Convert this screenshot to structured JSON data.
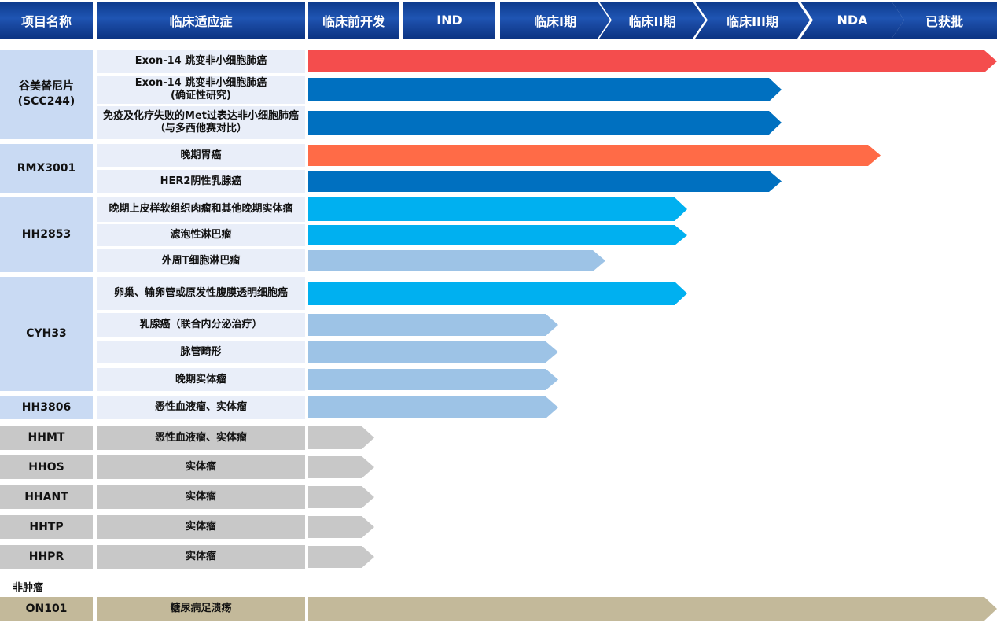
{
  "header": {
    "project_col": "项目名称",
    "indication_col": "临床适应症",
    "stages": [
      "临床前开发",
      "IND",
      "临床I期",
      "临床II期",
      "临床III期",
      "NDA",
      "已获批"
    ]
  },
  "colors": {
    "approved": "#F44D4D",
    "nda": "#FF6B47",
    "phase3": "#0070C0",
    "phase2": "#00B0F0",
    "early": "#9DC3E6",
    "preclinical": "#C8C8C8",
    "non_oncology": "#C3B99A",
    "cell_light": "#E9EEF9",
    "name_blue": "#C9DAF3"
  },
  "groups": [
    {
      "name": "谷美替尼片\n(SCC244)",
      "theme": "blue",
      "rows": [
        {
          "indication": "Exon-14 跳变非小细胞肺癌",
          "stage": "已获批",
          "color": "approved"
        },
        {
          "indication": "Exon-14 跳变非小细胞肺癌\n(确证性研究)",
          "stage": "临床III期",
          "color": "phase3"
        },
        {
          "indication": "免疫及化疗失败的Met过表达非小细胞肺癌（与多西他赛对比）",
          "stage": "临床III期",
          "color": "phase3"
        }
      ]
    },
    {
      "name": "RMX3001",
      "theme": "blue",
      "rows": [
        {
          "indication": "晚期胃癌",
          "stage": "NDA",
          "color": "nda"
        },
        {
          "indication": "HER2阴性乳腺癌",
          "stage": "临床III期",
          "color": "phase3"
        }
      ]
    },
    {
      "name": "HH2853",
      "theme": "blue",
      "rows": [
        {
          "indication": "晚期上皮样软组织肉瘤和其他晚期实体瘤",
          "stage": "临床II期",
          "color": "phase2"
        },
        {
          "indication": "滤泡性淋巴瘤",
          "stage": "临床II期",
          "color": "phase2"
        },
        {
          "indication": "外周T细胞淋巴瘤",
          "stage": "临床I期",
          "color": "early"
        }
      ]
    },
    {
      "name": "CYH33",
      "theme": "blue",
      "rows": [
        {
          "indication": "卵巢、输卵管或原发性腹膜透明细胞癌",
          "stage": "临床II期",
          "color": "phase2"
        },
        {
          "indication": "乳腺癌（联合内分泌治疗）",
          "stage": "IND",
          "color": "early"
        },
        {
          "indication": "脉管畸形",
          "stage": "IND",
          "color": "early"
        },
        {
          "indication": "晚期实体瘤",
          "stage": "IND",
          "color": "early"
        }
      ]
    },
    {
      "name": "HH3806",
      "theme": "blue",
      "rows": [
        {
          "indication": "恶性血液瘤、实体瘤",
          "stage": "IND",
          "color": "early"
        }
      ]
    },
    {
      "name": "HHMT",
      "theme": "gray",
      "rows": [
        {
          "indication": "恶性血液瘤、实体瘤",
          "stage": "临床前开发",
          "color": "preclinical"
        }
      ]
    },
    {
      "name": "HHOS",
      "theme": "gray",
      "rows": [
        {
          "indication": "实体瘤",
          "stage": "临床前开发",
          "color": "preclinical"
        }
      ]
    },
    {
      "name": "HHANT",
      "theme": "gray",
      "rows": [
        {
          "indication": "实体瘤",
          "stage": "临床前开发",
          "color": "preclinical"
        }
      ]
    },
    {
      "name": "HHTP",
      "theme": "gray",
      "rows": [
        {
          "indication": "实体瘤",
          "stage": "临床前开发",
          "color": "preclinical"
        }
      ]
    },
    {
      "name": "HHPR",
      "theme": "gray",
      "rows": [
        {
          "indication": "实体瘤",
          "stage": "临床前开发",
          "color": "preclinical"
        }
      ]
    }
  ],
  "section_label": "非肿瘤",
  "non_oncology": {
    "name": "ON101",
    "indication": "糖尿病足溃疡",
    "stage": "已获批",
    "color": "non_oncology"
  }
}
